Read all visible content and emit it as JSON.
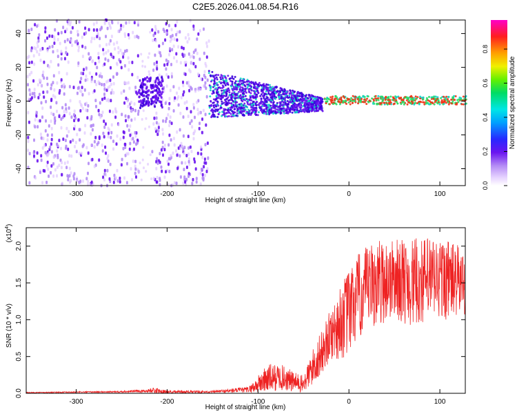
{
  "title": "C2E5.2026.041.08.54.R16",
  "colors": {
    "line": "#ee2222",
    "spec_light": "#e0c8ff",
    "spec_mid": "#b48cf5",
    "spec_dark": "#6a14f0",
    "spec_core": "#3c00dc",
    "spec_cyan": "#14d2c8",
    "spec_green": "#28dc64",
    "spec_red": "#f03214"
  },
  "chart_data": [
    {
      "type": "heatmap",
      "title": "C2E5.2026.041.08.54.R16",
      "xlabel": "Height of straight line (km)",
      "ylabel": "Frequency (Hz)",
      "xlim": [
        -355,
        128
      ],
      "ylim": [
        -50,
        48
      ],
      "xticks": [
        -300,
        -200,
        -100,
        0,
        100
      ],
      "xtick_labels": [
        "-300",
        "-200",
        "-100",
        "0",
        "100"
      ],
      "yticks": [
        -40,
        -20,
        0,
        20,
        40
      ],
      "ytick_labels": [
        "-40",
        "-20",
        "0",
        "20",
        "40"
      ],
      "colorbar": {
        "label": "Normalized spectral amplitude",
        "range": [
          0,
          0.97
        ],
        "ticks": [
          0.0,
          0.2,
          0.4,
          0.6,
          0.8
        ],
        "tick_labels": [
          "0.0",
          "0.2",
          "0.4",
          "0.6",
          "0.8"
        ],
        "colormap": "white-purple-blue-cyan-green-yellow-red-magenta"
      },
      "regions": [
        {
          "x": [
            -355,
            -232
          ],
          "freq": [
            -50,
            48
          ],
          "amp": [
            0.0,
            0.12
          ],
          "desc": "broadband noise"
        },
        {
          "x": [
            -232,
            -218
          ],
          "freq": [
            -50,
            48
          ],
          "amp": [
            0.0,
            0.05
          ],
          "desc": "gap"
        },
        {
          "x": [
            -218,
            -155
          ],
          "freq": [
            -50,
            48
          ],
          "amp": [
            0.0,
            0.12
          ],
          "desc": "broadband noise"
        },
        {
          "x": [
            -232,
            -205
          ],
          "freq": [
            -5,
            15
          ],
          "amp": [
            0.1,
            0.25
          ],
          "desc": "blob"
        },
        {
          "x": [
            -155,
            -30
          ],
          "freq": [
            -12,
            15
          ],
          "amp": [
            0.1,
            0.35
          ],
          "desc": "converging band"
        },
        {
          "x": [
            -30,
            128
          ],
          "freq": [
            -2,
            3
          ],
          "amp": [
            0.3,
            0.95
          ],
          "desc": "narrow line near 0 Hz"
        }
      ]
    },
    {
      "type": "line",
      "xlabel": "Height of straight line (km)",
      "ylabel": "SNR (10 * v/v)",
      "scale_label": "(x10",
      "scale_exponent": "4",
      "xlim": [
        -355,
        128
      ],
      "ylim": [
        0,
        2.25
      ],
      "xticks": [
        -300,
        -200,
        -100,
        0,
        100
      ],
      "xtick_labels": [
        "-300",
        "-200",
        "-100",
        "0",
        "100"
      ],
      "yticks": [
        0.0,
        0.5,
        1.0,
        1.5,
        2.0
      ],
      "ytick_labels": [
        "0.0",
        "0.5",
        "1.0",
        "1.5",
        "2.0"
      ],
      "envelope": {
        "x": [
          -355,
          -260,
          -225,
          -215,
          -200,
          -150,
          -110,
          -100,
          -90,
          -75,
          -60,
          -50,
          -40,
          -30,
          -20,
          -10,
          0,
          10,
          20,
          30,
          50,
          70,
          90,
          110,
          128
        ],
        "mid": [
          0.01,
          0.02,
          0.03,
          0.04,
          0.02,
          0.02,
          0.05,
          0.12,
          0.2,
          0.22,
          0.15,
          0.12,
          0.35,
          0.55,
          0.8,
          0.95,
          1.1,
          1.3,
          1.4,
          1.5,
          1.55,
          1.5,
          1.55,
          1.55,
          1.5
        ],
        "amp": [
          0.005,
          0.01,
          0.02,
          0.04,
          0.02,
          0.015,
          0.04,
          0.12,
          0.2,
          0.18,
          0.14,
          0.12,
          0.25,
          0.3,
          0.35,
          0.5,
          0.6,
          0.6,
          0.6,
          0.6,
          0.55,
          0.6,
          0.6,
          0.55,
          0.45
        ]
      }
    }
  ]
}
